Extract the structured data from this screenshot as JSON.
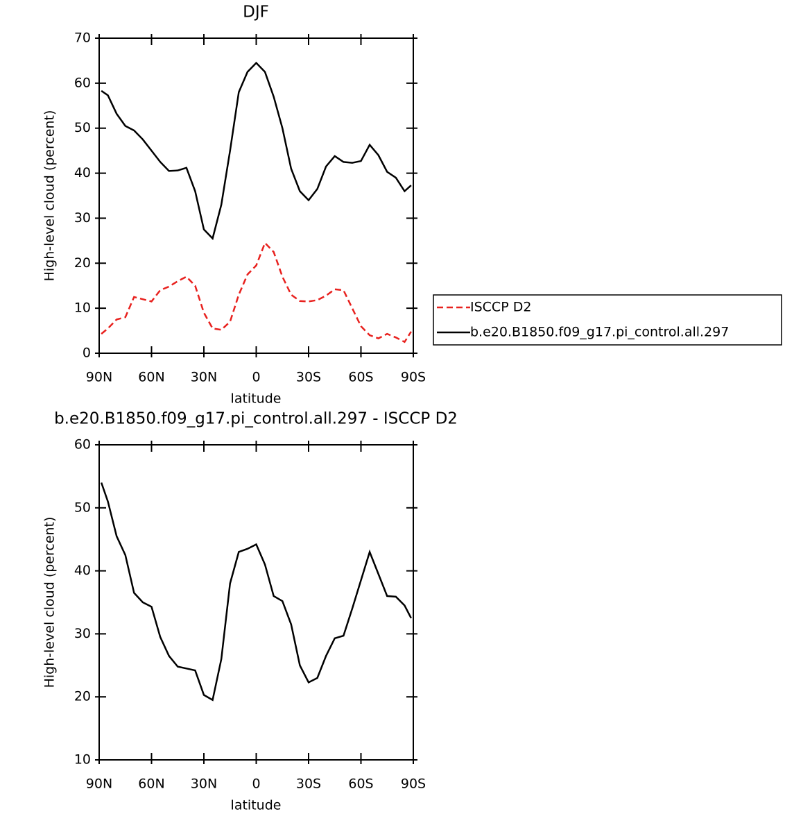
{
  "chart_data": [
    {
      "type": "line",
      "title": "DJF",
      "xlabel": "latitude",
      "ylabel": "High-level cloud (percent)",
      "x": [
        88.75,
        85,
        80,
        75,
        70,
        65,
        60,
        55,
        50,
        45,
        40,
        35,
        30,
        25,
        20,
        15,
        10,
        5,
        0,
        -5,
        -10,
        -15,
        -20,
        -25,
        -30,
        -35,
        -40,
        -45,
        -50,
        -55,
        -60,
        -65,
        -70,
        -75,
        -80,
        -85,
        -88.75
      ],
      "xlim": [
        90,
        -90
      ],
      "xticks": [
        {
          "value": 90,
          "label": "90N"
        },
        {
          "value": 60,
          "label": "60N"
        },
        {
          "value": 30,
          "label": "30N"
        },
        0,
        {
          "value": -30,
          "label": "30S"
        },
        {
          "value": -60,
          "label": "60S"
        },
        {
          "value": -90,
          "label": "90S"
        }
      ],
      "ylim": [
        0,
        70
      ],
      "yticks": [
        0,
        10,
        20,
        30,
        40,
        50,
        60,
        70
      ],
      "legend": "right",
      "series": [
        {
          "name": "ISCCP D2",
          "color": "#e8211e",
          "linestyle": "dashed",
          "values": [
            4.3,
            5.5,
            7.5,
            8,
            12.5,
            12,
            11.5,
            14,
            14.8,
            16,
            17,
            15,
            9,
            5.5,
            5.2,
            7,
            13,
            17.5,
            19.5,
            24.5,
            22.5,
            17,
            13,
            11.6,
            11.5,
            11.8,
            12.8,
            14.2,
            14,
            10,
            6,
            4,
            3.3,
            4.3,
            3.5,
            2.5,
            4.8
          ]
        },
        {
          "name": "b.e20.B1850.f09_g17.pi_control.all.297",
          "color": "#000000",
          "linestyle": "solid",
          "values": [
            58.3,
            57.3,
            53.2,
            50.5,
            49.5,
            47.5,
            45,
            42.5,
            40.5,
            40.6,
            41.2,
            36,
            27.5,
            25.5,
            33,
            45,
            58,
            62.5,
            64.5,
            62.5,
            57,
            50,
            41,
            36,
            34,
            36.5,
            41.5,
            43.8,
            42.5,
            42.3,
            42.7,
            46.3,
            44,
            40.3,
            39,
            36,
            37.3
          ]
        }
      ]
    },
    {
      "type": "line",
      "title": "b.e20.B1850.f09_g17.pi_control.all.297 - ISCCP D2",
      "xlabel": "latitude",
      "ylabel": "High-level cloud (percent)",
      "x": [
        88.75,
        85,
        80,
        75,
        70,
        65,
        60,
        55,
        50,
        45,
        40,
        35,
        30,
        25,
        20,
        15,
        10,
        5,
        0,
        -5,
        -10,
        -15,
        -20,
        -25,
        -30,
        -35,
        -40,
        -45,
        -50,
        -55,
        -60,
        -65,
        -70,
        -75,
        -80,
        -85,
        -88.75
      ],
      "xlim": [
        90,
        -90
      ],
      "xticks": [
        {
          "value": 90,
          "label": "90N"
        },
        {
          "value": 60,
          "label": "60N"
        },
        {
          "value": 30,
          "label": "30N"
        },
        0,
        {
          "value": -30,
          "label": "30S"
        },
        {
          "value": -60,
          "label": "60S"
        },
        {
          "value": -90,
          "label": "90S"
        }
      ],
      "ylim": [
        10,
        60
      ],
      "yticks": [
        10,
        20,
        30,
        40,
        50,
        60
      ],
      "series": [
        {
          "color": "#000000",
          "linestyle": "solid",
          "values": [
            54,
            51,
            45.5,
            42.5,
            36.5,
            35,
            34.3,
            29.5,
            26.5,
            24.8,
            24.5,
            24.2,
            20.3,
            19.5,
            26,
            38,
            43,
            43.5,
            44.2,
            41,
            36,
            35.2,
            31.5,
            25,
            22.3,
            23,
            26.5,
            29.3,
            29.7,
            34,
            38.5,
            43,
            39.5,
            36,
            35.9,
            34.5,
            32.5
          ]
        }
      ]
    }
  ]
}
